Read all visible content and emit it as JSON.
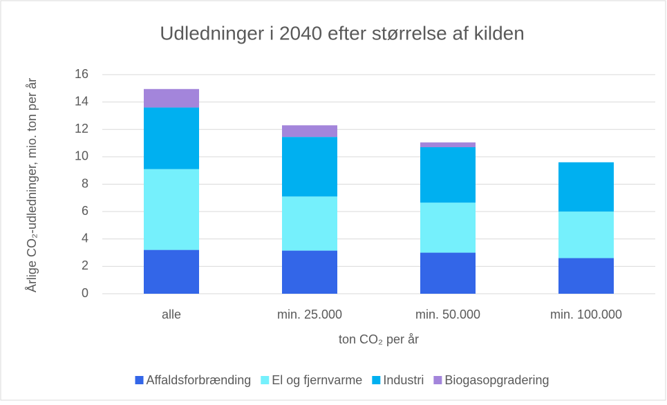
{
  "chart_data": {
    "type": "stacked_bar",
    "title": "Udledninger i 2040 efter størrelse af kilden",
    "y_label": "Årlige CO₂-udledninger, mio. ton per år",
    "x_label": "ton CO₂ per år",
    "categories": [
      "alle",
      "min. 25.000",
      "min. 50.000",
      "min. 100.000"
    ],
    "series": [
      {
        "name": "Affaldsforbrænding",
        "color": "#3366e8",
        "values": [
          3.2,
          3.15,
          3.0,
          2.6
        ]
      },
      {
        "name": "El og fjernvarme",
        "color": "#75f0fc",
        "values": [
          5.9,
          3.95,
          3.65,
          3.4
        ]
      },
      {
        "name": "Industri",
        "color": "#00b0f0",
        "values": [
          4.5,
          4.35,
          4.05,
          3.6
        ]
      },
      {
        "name": "Biogasopgradering",
        "color": "#a385db",
        "values": [
          1.35,
          0.85,
          0.35,
          0
        ]
      }
    ],
    "ylim": [
      0,
      16
    ],
    "yticks": [
      0,
      2,
      4,
      6,
      8,
      10,
      12,
      14,
      16
    ],
    "grid": true,
    "legend": "bottom"
  }
}
